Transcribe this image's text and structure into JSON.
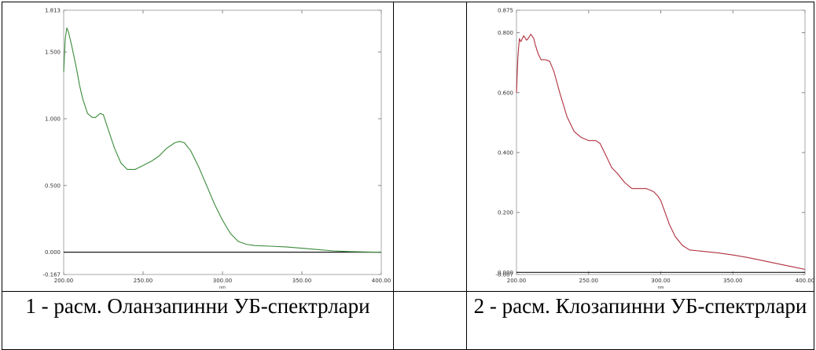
{
  "captions": [
    "1 - расм. Оланзапинни УБ-спектрлари",
    "2 - расм. Клозапинни УБ-спектрлари"
  ],
  "chart_data": [
    {
      "type": "line",
      "title": "",
      "xlabel": "nm",
      "ylabel": "",
      "xlim": [
        200,
        400
      ],
      "ylim": [
        -0.167,
        1.813
      ],
      "grid": false,
      "xticks": [
        {
          "v": 200,
          "label": "200.00"
        },
        {
          "v": 250,
          "label": "250.00"
        },
        {
          "v": 300,
          "label": "300.00"
        },
        {
          "v": 350,
          "label": "350.00"
        },
        {
          "v": 400,
          "label": "400.00"
        }
      ],
      "yticks": [
        {
          "v": -0.167,
          "label": "-0.167"
        },
        {
          "v": 0,
          "label": "0.000"
        },
        {
          "v": 0.5,
          "label": "0.500"
        },
        {
          "v": 1.0,
          "label": "1.000"
        },
        {
          "v": 1.5,
          "label": "1.500"
        },
        {
          "v": 1.813,
          "label": "1.813"
        }
      ],
      "colors": {
        "line": "#3a8a3a",
        "baseline": "#1a1a1a",
        "frame": "#aaaaaa"
      },
      "series": [
        {
          "x": [
            200,
            201,
            202,
            203,
            205,
            208,
            210,
            212,
            215,
            218,
            220,
            223,
            225,
            228,
            232,
            236,
            240,
            245,
            250,
            255,
            260,
            265,
            270,
            273,
            276,
            280,
            285,
            290,
            295,
            300,
            305,
            310,
            315,
            320,
            330,
            340,
            350,
            360,
            370,
            380,
            390,
            400
          ],
          "y": [
            1.35,
            1.6,
            1.68,
            1.65,
            1.55,
            1.38,
            1.25,
            1.15,
            1.04,
            1.01,
            1.01,
            1.04,
            1.03,
            0.92,
            0.78,
            0.67,
            0.62,
            0.62,
            0.65,
            0.68,
            0.72,
            0.78,
            0.82,
            0.83,
            0.82,
            0.76,
            0.64,
            0.5,
            0.36,
            0.24,
            0.14,
            0.08,
            0.06,
            0.05,
            0.045,
            0.04,
            0.03,
            0.02,
            0.01,
            0.005,
            0.002,
            0.0
          ]
        }
      ]
    },
    {
      "type": "line",
      "title": "",
      "xlabel": "nm",
      "ylabel": "",
      "xlim": [
        200,
        400
      ],
      "ylim": [
        -0.007,
        0.875
      ],
      "grid": false,
      "xticks": [
        {
          "v": 200,
          "label": "200.00"
        },
        {
          "v": 250,
          "label": "250.00"
        },
        {
          "v": 300,
          "label": "300.00"
        },
        {
          "v": 350,
          "label": "350.00"
        },
        {
          "v": 400,
          "label": "400.00"
        }
      ],
      "yticks": [
        {
          "v": -0.007,
          "label": "-0.007"
        },
        {
          "v": 0,
          "label": "0.000"
        },
        {
          "v": 0.2,
          "label": "0.200"
        },
        {
          "v": 0.4,
          "label": "0.400"
        },
        {
          "v": 0.6,
          "label": "0.600"
        },
        {
          "v": 0.8,
          "label": "0.800"
        },
        {
          "v": 0.875,
          "label": "0.875"
        }
      ],
      "colors": {
        "line": "#b03040",
        "baseline": "#1a1a1a",
        "frame": "#aaaaaa"
      },
      "series": [
        {
          "x": [
            200,
            201,
            202,
            203,
            205,
            207,
            208,
            210,
            212,
            213,
            215,
            217,
            220,
            223,
            226,
            230,
            235,
            240,
            245,
            250,
            255,
            258,
            262,
            266,
            270,
            275,
            280,
            285,
            290,
            295,
            298,
            300,
            303,
            306,
            310,
            315,
            320,
            330,
            340,
            350,
            360,
            370,
            380,
            390,
            400
          ],
          "y": [
            0.6,
            0.72,
            0.78,
            0.77,
            0.79,
            0.775,
            0.78,
            0.795,
            0.78,
            0.76,
            0.73,
            0.71,
            0.71,
            0.705,
            0.67,
            0.6,
            0.52,
            0.47,
            0.45,
            0.44,
            0.44,
            0.43,
            0.39,
            0.35,
            0.33,
            0.3,
            0.28,
            0.28,
            0.28,
            0.27,
            0.255,
            0.24,
            0.2,
            0.16,
            0.12,
            0.09,
            0.075,
            0.07,
            0.065,
            0.058,
            0.05,
            0.04,
            0.03,
            0.02,
            0.01
          ]
        }
      ]
    }
  ]
}
